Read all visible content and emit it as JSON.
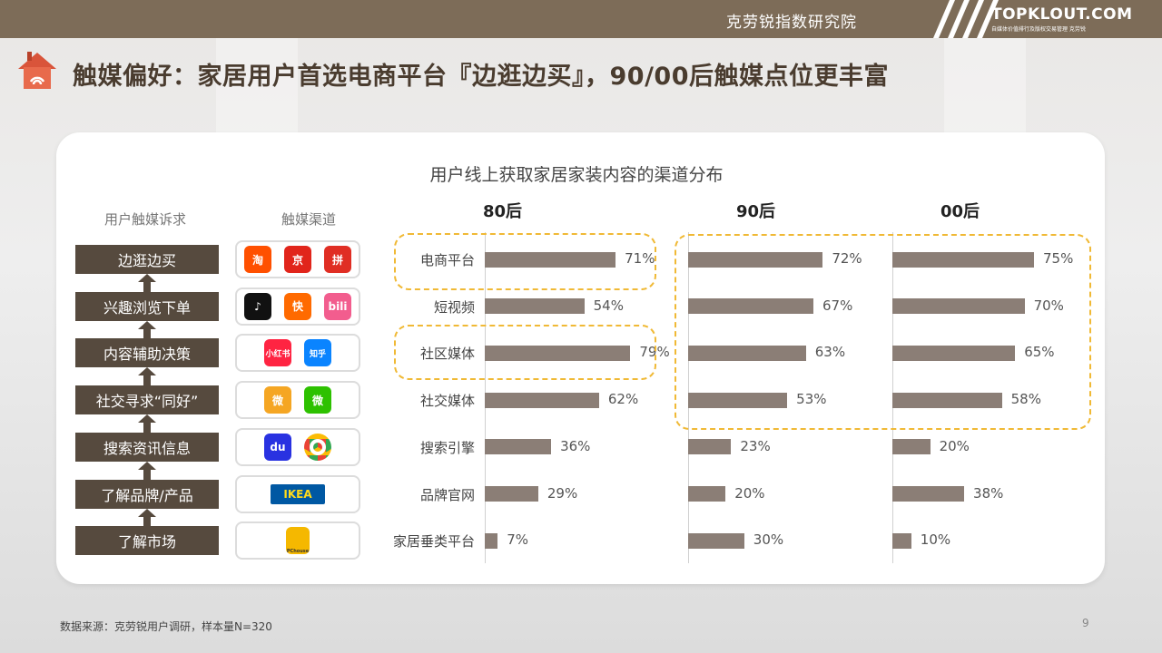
{
  "header": {
    "institute": "克劳锐指数研究院",
    "logo_main": "TOPKLOUT.COM",
    "logo_sub": "自媒体价值排行及版权交易管理 克劳锐"
  },
  "page_title": "触媒偏好：家居用户首选电商平台『边逛边买』，90/00后触媒点位更丰富",
  "column_heads": {
    "needs": "用户触媒诉求",
    "channels": "触媒渠道"
  },
  "needs": [
    "边逛边买",
    "兴趣浏览下单",
    "内容辅助决策",
    "社交寻求“同好”",
    "搜索资讯信息",
    "了解品牌/产品",
    "了解市场"
  ],
  "channel_icons": [
    [
      {
        "name": "taobao-icon",
        "label": "淘",
        "color": "#ff5000"
      },
      {
        "name": "jd-icon",
        "label": "京",
        "color": "#e1251b"
      },
      {
        "name": "pinduoduo-icon",
        "label": "拼",
        "color": "#e02e24"
      }
    ],
    [
      {
        "name": "douyin-icon",
        "label": "♪",
        "color": "#111111"
      },
      {
        "name": "kuaishou-icon",
        "label": "快",
        "color": "#ff6a00"
      },
      {
        "name": "bilibili-icon",
        "label": "bili",
        "color": "#f25d8e"
      }
    ],
    [
      {
        "name": "xiaohongshu-icon",
        "label": "小红书",
        "color": "#ff2442"
      },
      {
        "name": "zhihu-icon",
        "label": "知乎",
        "color": "#0a84ff"
      }
    ],
    [
      {
        "name": "weibo-icon",
        "label": "微",
        "color": "#f5a623"
      },
      {
        "name": "wechat-icon",
        "label": "微",
        "color": "#2dc100"
      }
    ],
    [
      {
        "name": "baidu-icon",
        "label": "du",
        "color": "#2932e1"
      },
      {
        "name": "chrome-icon",
        "label": "",
        "color": "#4285f4"
      }
    ],
    [
      {
        "name": "ikea-icon",
        "label": "IKEA",
        "color": "#0058a3"
      }
    ],
    [
      {
        "name": "pchouse-icon",
        "label": "PChouse",
        "color": "#f5b800"
      }
    ]
  ],
  "chart_data": {
    "type": "bar",
    "orientation": "horizontal",
    "title": "用户线上获取家居家装内容的渠道分布",
    "categories": [
      "电商平台",
      "短视频",
      "社区媒体",
      "社交媒体",
      "搜索引擎",
      "品牌官网",
      "家居垂类平台"
    ],
    "series": [
      {
        "name": "80后",
        "values": [
          71,
          54,
          79,
          62,
          36,
          29,
          7
        ],
        "labels": [
          "71%",
          "54%",
          "79%",
          "62%",
          "36%",
          "29%",
          "7%"
        ]
      },
      {
        "name": "90后",
        "values": [
          72,
          67,
          63,
          53,
          23,
          20,
          30
        ],
        "labels": [
          "72%",
          "67%",
          "63%",
          "53%",
          "23%",
          "20%",
          "30%"
        ]
      },
      {
        "name": "00后",
        "values": [
          75,
          70,
          65,
          58,
          20,
          38,
          10
        ],
        "labels": [
          "75%",
          "70%",
          "65%",
          "58%",
          "20%",
          "38%",
          "10%"
        ]
      }
    ],
    "xlim": [
      0,
      100
    ],
    "colors": {
      "bar": "#8b7e76",
      "highlight": "#f0b935"
    }
  },
  "footer": {
    "source": "数据来源：克劳锐用户调研，样本量N=320",
    "page": "9"
  }
}
